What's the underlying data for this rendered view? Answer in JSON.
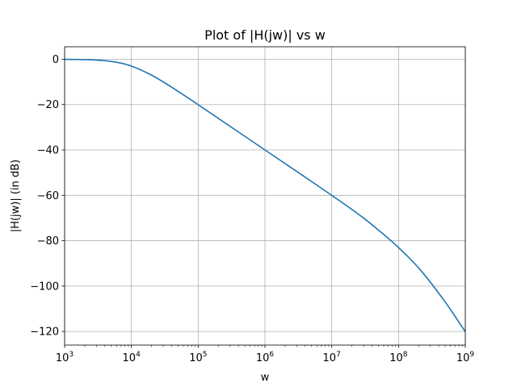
{
  "chart_data": {
    "type": "line",
    "title": "Plot of |H(jw)| vs w",
    "xlabel": "w",
    "ylabel": "|H(jw)| (in dB)",
    "xscale": "log",
    "xlim": [
      1000,
      1000000000
    ],
    "ylim": [
      -126,
      5.5
    ],
    "grid": true,
    "x_ticks": [
      {
        "value": 1000,
        "base": "10",
        "exp": "3"
      },
      {
        "value": 10000,
        "base": "10",
        "exp": "4"
      },
      {
        "value": 100000,
        "base": "10",
        "exp": "5"
      },
      {
        "value": 1000000,
        "base": "10",
        "exp": "6"
      },
      {
        "value": 10000000,
        "base": "10",
        "exp": "7"
      },
      {
        "value": 100000000,
        "base": "10",
        "exp": "8"
      },
      {
        "value": 1000000000,
        "base": "10",
        "exp": "9"
      }
    ],
    "y_ticks": [
      0,
      -20,
      -40,
      -60,
      -80,
      -100,
      -120
    ],
    "series": [
      {
        "color": "#1f77b4",
        "x": [
          1000,
          2000,
          3000,
          5000,
          7000,
          10000,
          20000,
          50000,
          100000,
          1000000,
          10000000,
          30000000,
          50000000,
          100000000,
          200000000,
          500000000,
          1000000000
        ],
        "y": [
          -0.04,
          -0.17,
          -0.37,
          -0.97,
          -1.73,
          -3.01,
          -6.99,
          -14.15,
          -20.04,
          -40.0,
          -60.0,
          -70.0,
          -75.3,
          -83.0,
          -92.0,
          -107.0,
          -120.1
        ]
      }
    ]
  }
}
